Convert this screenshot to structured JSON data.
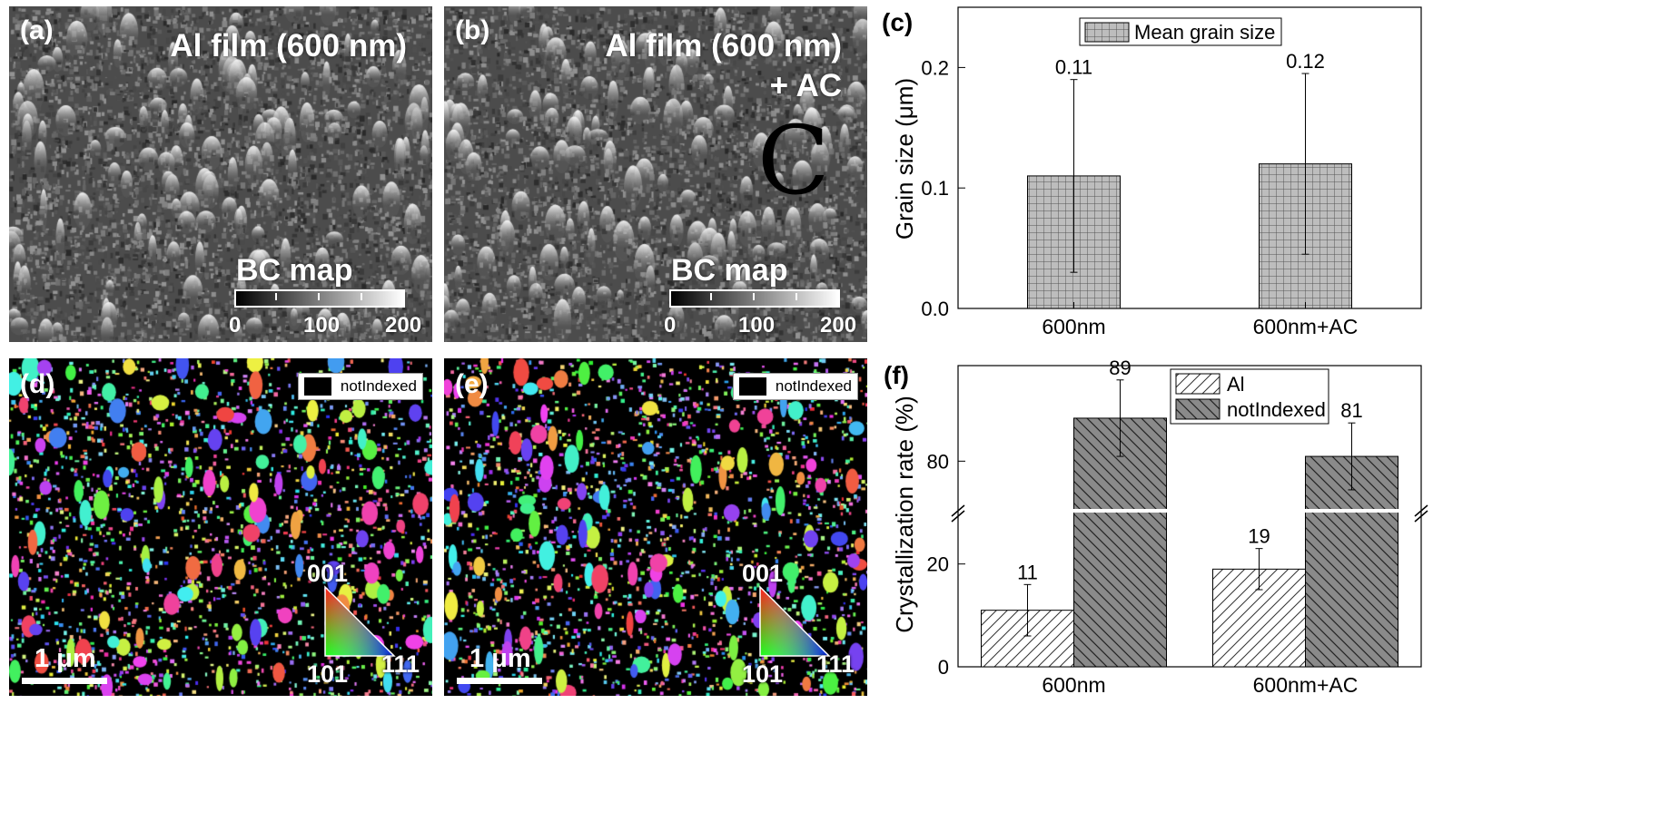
{
  "panels": {
    "a": {
      "label": "(a)",
      "title_line1": "Al film (600 nm)",
      "title_line2": "",
      "bc_label": "BC map",
      "colorbar_ticks": [
        "0",
        "100",
        "200"
      ]
    },
    "b": {
      "label": "(b)",
      "title_line1": "Al film (600 nm)",
      "title_line2": "+ AC",
      "bc_label": "BC map",
      "colorbar_ticks": [
        "0",
        "100",
        "200"
      ],
      "overlay_mark": "C"
    },
    "d": {
      "label": "(d)",
      "legend_label": "notIndexed",
      "scale_bar": "1 μm",
      "ipf_labels": [
        "001",
        "101",
        "111"
      ]
    },
    "e": {
      "label": "(e)",
      "legend_label": "notIndexed",
      "scale_bar": "1 μm",
      "ipf_labels": [
        "001",
        "101",
        "111"
      ]
    }
  },
  "chart_data": [
    {
      "panel_label": "(c)",
      "type": "bar",
      "categories": [
        "600nm",
        "600nm+AC"
      ],
      "series": [
        {
          "name": "Mean grain size",
          "values": [
            0.11,
            0.12
          ],
          "error_low": [
            0.03,
            0.045
          ],
          "error_high": [
            0.19,
            0.195
          ]
        }
      ],
      "data_labels": [
        "0.11",
        "0.12"
      ],
      "ylabel": "Grain size (μm)",
      "ylim": [
        0,
        0.25
      ],
      "yticks": [
        0.0,
        0.1,
        0.2
      ],
      "ytick_labels": [
        "0.0",
        "0.1",
        "0.2"
      ],
      "legend_position": "top-center",
      "pattern": "grid",
      "colors": {
        "bar_fill": "#bdbdbd"
      }
    },
    {
      "panel_label": "(f)",
      "type": "bar",
      "categories": [
        "600nm",
        "600nm+AC"
      ],
      "series": [
        {
          "name": "Al",
          "values": [
            11,
            19
          ],
          "error": [
            5,
            4
          ],
          "pattern": "hatch-forward",
          "color": "#ffffff"
        },
        {
          "name": "notIndexed",
          "values": [
            89,
            81
          ],
          "error": [
            8,
            7
          ],
          "pattern": "hatch-back",
          "color": "#8a8a8a"
        }
      ],
      "data_labels": [
        [
          "11",
          "19"
        ],
        [
          "89",
          "81"
        ]
      ],
      "ylabel": "Crystallization rate (%)",
      "axis_break": [
        30,
        70
      ],
      "yticks": [
        0,
        20,
        80
      ],
      "ytick_labels": [
        "0",
        "20",
        "80"
      ],
      "legend_position": "top-center"
    }
  ]
}
